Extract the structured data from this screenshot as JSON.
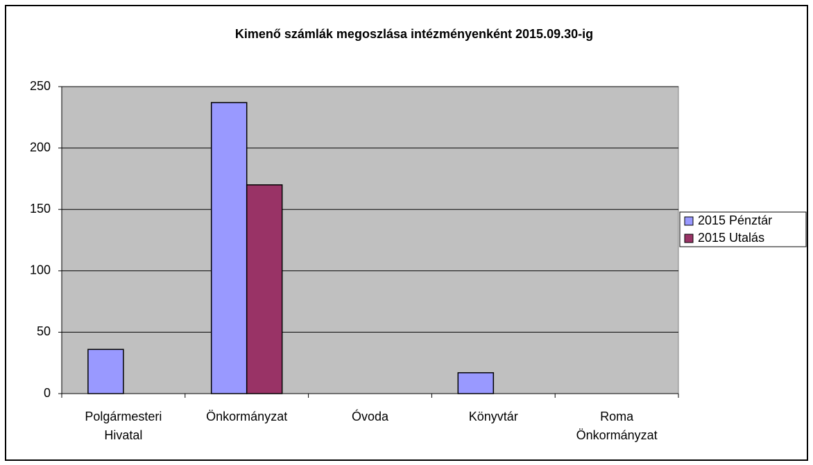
{
  "chart_data": {
    "type": "bar",
    "title": "Kimenő számlák megoszlása intézményenként 2015.09.30-ig",
    "categories": [
      "Polgármesteri Hivatal",
      "Önkormányzat",
      "Óvoda",
      "Könyvtár",
      "Roma Önkormányzat"
    ],
    "series": [
      {
        "name": "2015 Pénztár",
        "color": "#9999ff",
        "values": [
          36,
          237,
          0,
          17,
          0
        ]
      },
      {
        "name": "2015 Utalás",
        "color": "#993366",
        "values": [
          0,
          170,
          0,
          0,
          0
        ]
      }
    ],
    "ylim": [
      0,
      250
    ],
    "yticks": [
      0,
      50,
      100,
      150,
      200,
      250
    ],
    "grid": true,
    "plot_background": "#c0c0c0",
    "legend": "right"
  }
}
